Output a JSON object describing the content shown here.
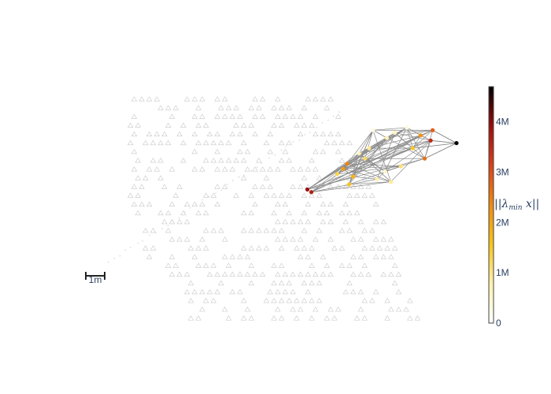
{
  "chart_data": {
    "type": "scatter",
    "description_words": "sparse mesh plot with nodes colored by magnitude",
    "colorbar": {
      "title": "||λ_min x||",
      "tick_labels": [
        "0",
        "1M",
        "2M",
        "3M",
        "4M"
      ],
      "tick_values": [
        0,
        1000000,
        2000000,
        3000000,
        4000000
      ],
      "range": [
        0,
        4700000
      ],
      "colorscale": [
        "#ffffff",
        "#fff1b0",
        "#f7c51a",
        "#ee8a12",
        "#d9411a",
        "#9a0d0d",
        "#000000"
      ]
    },
    "scale_bar": {
      "label": "1m",
      "length_m": 1
    },
    "x_range": [
      -8.6,
      10.6
    ],
    "y_range": [
      -4.5,
      6.2
    ],
    "anchor_node": {
      "x": 10.4,
      "y": 3.4,
      "value": 4700000
    },
    "highlight_nodes": [
      {
        "x": 2.9,
        "y": 1.6,
        "value": 3900000
      },
      {
        "x": 3.1,
        "y": 1.5,
        "value": 3600000
      },
      {
        "x": 4.9,
        "y": 2.6,
        "value": 2400000
      },
      {
        "x": 4.7,
        "y": 2.4,
        "value": 2100000
      },
      {
        "x": 5.2,
        "y": 2.1,
        "value": 1800000
      },
      {
        "x": 5.8,
        "y": 2.8,
        "value": 1200000
      },
      {
        "x": 6.0,
        "y": 3.2,
        "value": 900000
      },
      {
        "x": 6.4,
        "y": 2.0,
        "value": 800000
      },
      {
        "x": 6.9,
        "y": 3.6,
        "value": 700000
      },
      {
        "x": 7.3,
        "y": 3.8,
        "value": 600000
      },
      {
        "x": 7.6,
        "y": 2.5,
        "value": 1100000
      },
      {
        "x": 8.2,
        "y": 3.2,
        "value": 1500000
      },
      {
        "x": 8.6,
        "y": 3.7,
        "value": 2200000
      },
      {
        "x": 9.1,
        "y": 3.5,
        "value": 3500000
      },
      {
        "x": 9.2,
        "y": 3.9,
        "value": 2800000
      },
      {
        "x": 8.8,
        "y": 2.8,
        "value": 2600000
      },
      {
        "x": 5.5,
        "y": 3.0,
        "value": 700000
      },
      {
        "x": 6.8,
        "y": 2.3,
        "value": 500000
      },
      {
        "x": 7.9,
        "y": 4.0,
        "value": 400000
      },
      {
        "x": 5.0,
        "y": 1.8,
        "value": 1600000
      },
      {
        "x": 4.4,
        "y": 2.2,
        "value": 1300000
      },
      {
        "x": 6.2,
        "y": 3.9,
        "value": 300000
      },
      {
        "x": 7.1,
        "y": 1.9,
        "value": 900000
      }
    ]
  }
}
